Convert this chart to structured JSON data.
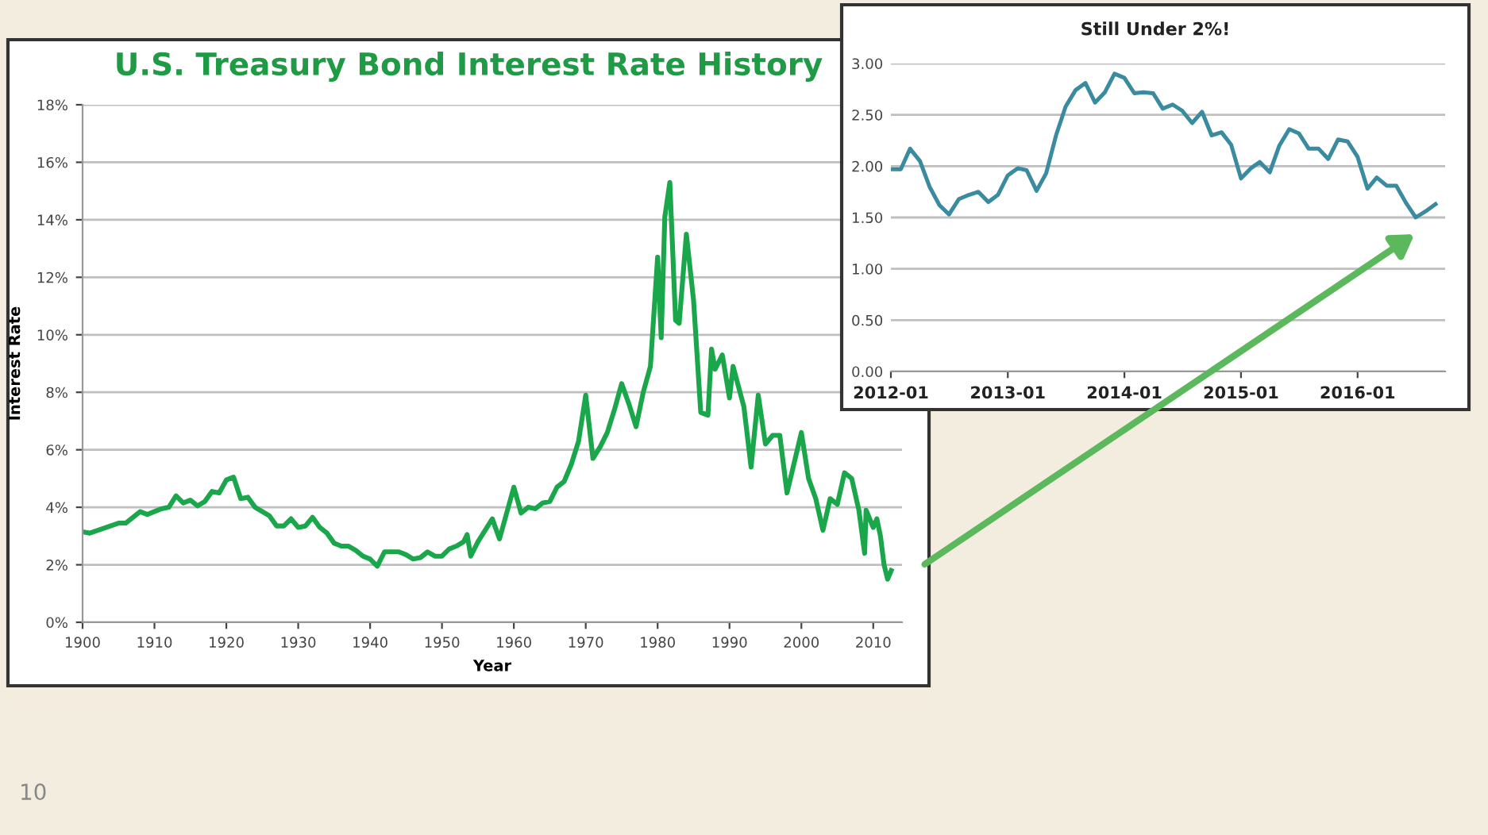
{
  "chart_data": [
    {
      "type": "line",
      "title": "U.S. Treasury Bond Interest Rate History",
      "xlabel": "Year",
      "ylabel": "Interest Rate",
      "grid": "y",
      "xlim": [
        1900,
        2014
      ],
      "ylim": [
        0,
        18
      ],
      "xticks": [
        1900,
        1910,
        1920,
        1930,
        1940,
        1950,
        1960,
        1970,
        1980,
        1990,
        2000,
        2010
      ],
      "yticks": [
        {
          "value": 0,
          "label": "0%"
        },
        {
          "value": 2,
          "label": "2%"
        },
        {
          "value": 4,
          "label": "4%"
        },
        {
          "value": 6,
          "label": "6%"
        },
        {
          "value": 8,
          "label": "8%"
        },
        {
          "value": 10,
          "label": "10%"
        },
        {
          "value": 12,
          "label": "12%"
        },
        {
          "value": 14,
          "label": "14%"
        },
        {
          "value": 16,
          "label": "16%"
        },
        {
          "value": 18,
          "label": "18%"
        }
      ],
      "x": [
        1900,
        1901,
        1905,
        1906,
        1908,
        1909,
        1911,
        1912,
        1913,
        1914,
        1915,
        1916,
        1917,
        1918,
        1919,
        1920,
        1921,
        1922,
        1923,
        1924,
        1926,
        1927,
        1928,
        1929,
        1930,
        1931,
        1932,
        1933,
        1934,
        1935,
        1936,
        1937,
        1938,
        1939,
        1940,
        1941,
        1942,
        1944,
        1945,
        1946,
        1947,
        1948,
        1949,
        1950,
        1951,
        1952,
        1953,
        1953.5,
        1954,
        1955,
        1957,
        1958,
        1960,
        1961,
        1962,
        1963,
        1964,
        1965,
        1966,
        1967,
        1968,
        1969,
        1970,
        1971,
        1972,
        1973,
        1974,
        1975,
        1976,
        1977,
        1978,
        1979,
        1980,
        1980.5,
        1981,
        1981.7,
        1982,
        1982.5,
        1983,
        1984,
        1985,
        1986,
        1987,
        1987.5,
        1988,
        1989,
        1990,
        1990.5,
        1992,
        1993,
        1994,
        1995,
        1996,
        1997,
        1998,
        2000,
        2001,
        2002,
        2003,
        2004,
        2005,
        2006,
        2007,
        2008,
        2008.8,
        2009,
        2010,
        2010.5,
        2011,
        2011.5,
        2012,
        2012.5
      ],
      "series": [
        {
          "color": "#1aa64a",
          "values": [
            3.15,
            3.1,
            3.45,
            3.45,
            3.85,
            3.75,
            3.95,
            4.0,
            4.4,
            4.15,
            4.25,
            4.05,
            4.2,
            4.55,
            4.5,
            4.95,
            5.05,
            4.3,
            4.35,
            4.0,
            3.7,
            3.35,
            3.35,
            3.6,
            3.3,
            3.35,
            3.65,
            3.3,
            3.1,
            2.75,
            2.65,
            2.65,
            2.5,
            2.3,
            2.2,
            1.95,
            2.45,
            2.45,
            2.35,
            2.2,
            2.25,
            2.45,
            2.3,
            2.3,
            2.55,
            2.65,
            2.8,
            3.05,
            2.3,
            2.8,
            3.6,
            2.9,
            4.7,
            3.8,
            4.0,
            3.95,
            4.15,
            4.2,
            4.7,
            4.9,
            5.5,
            6.3,
            7.9,
            5.7,
            6.1,
            6.6,
            7.4,
            8.3,
            7.6,
            6.8,
            8.0,
            8.9,
            12.7,
            9.9,
            14.1,
            15.3,
            13.5,
            10.5,
            10.4,
            13.5,
            11.2,
            7.3,
            7.2,
            9.5,
            8.8,
            9.3,
            7.8,
            8.9,
            7.5,
            5.4,
            7.9,
            6.2,
            6.5,
            6.5,
            4.5,
            6.6,
            5.0,
            4.3,
            3.2,
            4.3,
            4.1,
            5.2,
            5.0,
            3.9,
            2.4,
            3.9,
            3.3,
            3.6,
            3.0,
            2.0,
            1.5,
            1.8
          ]
        }
      ],
      "annotations": [
        "10"
      ]
    },
    {
      "type": "line",
      "title": "Still Under 2%!",
      "grid": "y",
      "xlim": [
        "2012-01",
        "2016-10"
      ],
      "ylim": [
        0,
        3
      ],
      "xticks": [
        {
          "value": "2012-01",
          "label": "2012-01"
        },
        {
          "value": "2013-01",
          "label": "2013-01"
        },
        {
          "value": "2014-01",
          "label": "2014-01"
        },
        {
          "value": "2015-01",
          "label": "2015-01"
        },
        {
          "value": "2016-01",
          "label": "2016-01"
        }
      ],
      "yticks": [
        {
          "value": 0,
          "label": "0.00"
        },
        {
          "value": 0.5,
          "label": "0.50"
        },
        {
          "value": 1,
          "label": "1.00"
        },
        {
          "value": 1.5,
          "label": "1.50"
        },
        {
          "value": 2,
          "label": "2.00"
        },
        {
          "value": 2.5,
          "label": "2.50"
        },
        {
          "value": 3,
          "label": "3.00"
        }
      ],
      "x": [
        "2012-01",
        "2012-02",
        "2012-03",
        "2012-04",
        "2012-05",
        "2012-06",
        "2012-07",
        "2012-08",
        "2012-09",
        "2012-10",
        "2012-11",
        "2012-12",
        "2013-01",
        "2013-02",
        "2013-03",
        "2013-04",
        "2013-05",
        "2013-06",
        "2013-07",
        "2013-08",
        "2013-09",
        "2013-10",
        "2013-11",
        "2013-12",
        "2014-01",
        "2014-02",
        "2014-03",
        "2014-04",
        "2014-05",
        "2014-06",
        "2014-07",
        "2014-08",
        "2014-09",
        "2014-10",
        "2014-11",
        "2014-12",
        "2015-01",
        "2015-02",
        "2015-03",
        "2015-04",
        "2015-05",
        "2015-06",
        "2015-07",
        "2015-08",
        "2015-09",
        "2015-10",
        "2015-11",
        "2015-12",
        "2016-01",
        "2016-02",
        "2016-03",
        "2016-04",
        "2016-05",
        "2016-06",
        "2016-07",
        "2016-08",
        "2016-09"
      ],
      "series": [
        {
          "color": "#3a8aa0",
          "values": [
            1.97,
            1.97,
            2.17,
            2.05,
            1.8,
            1.62,
            1.53,
            1.68,
            1.72,
            1.75,
            1.65,
            1.72,
            1.91,
            1.98,
            1.96,
            1.76,
            1.93,
            2.3,
            2.58,
            2.74,
            2.81,
            2.62,
            2.72,
            2.9,
            2.86,
            2.71,
            2.72,
            2.71,
            2.56,
            2.6,
            2.54,
            2.42,
            2.53,
            2.3,
            2.33,
            2.21,
            1.88,
            1.98,
            2.04,
            1.94,
            2.2,
            2.36,
            2.32,
            2.17,
            2.17,
            2.07,
            2.26,
            2.24,
            2.09,
            1.78,
            1.89,
            1.81,
            1.81,
            1.64,
            1.5,
            1.56,
            1.63
          ]
        }
      ]
    }
  ]
}
